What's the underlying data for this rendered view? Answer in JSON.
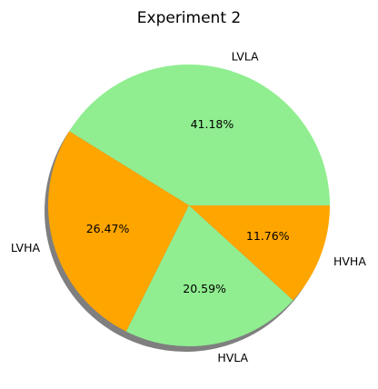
{
  "chart_data": {
    "type": "pie",
    "title": "Experiment 2",
    "slices": [
      {
        "label": "LVLA",
        "value": 41.18,
        "pct_text": "41.18%",
        "color": "#90ee90"
      },
      {
        "label": "LVHA",
        "value": 26.47,
        "pct_text": "26.47%",
        "color": "#ffa500"
      },
      {
        "label": "HVLA",
        "value": 20.59,
        "pct_text": "20.59%",
        "color": "#90ee90"
      },
      {
        "label": "HVHA",
        "value": 11.76,
        "pct_text": "11.76%",
        "color": "#ffa500"
      }
    ],
    "start_angle_deg": 0,
    "direction": "counterclockwise",
    "shadow": true,
    "legend": "none"
  }
}
